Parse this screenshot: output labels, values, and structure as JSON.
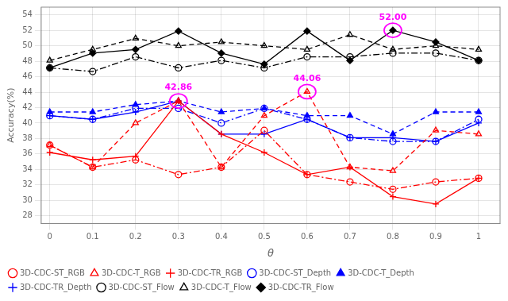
{
  "chart_data": {
    "type": "line",
    "xlabel": "θ",
    "ylabel": "Accuracy(%)",
    "x": [
      0,
      0.1,
      0.2,
      0.3,
      0.4,
      0.5,
      0.6,
      0.7,
      0.8,
      0.9,
      1
    ],
    "series": [
      {
        "name": "3D-CDC-ST_RGB",
        "color": "#FF0000",
        "line_style": "dashdot",
        "marker": "circle_open",
        "values": [
          37.14,
          34.29,
          35.24,
          33.33,
          34.29,
          39.05,
          33.33,
          32.38,
          31.43,
          32.38,
          32.86
        ]
      },
      {
        "name": "3D-CDC-T_RGB",
        "color": "#FF0000",
        "line_style": "dashed",
        "marker": "triangle_open",
        "values": [
          37.14,
          34.29,
          40.0,
          42.86,
          34.29,
          40.95,
          44.06,
          34.29,
          33.81,
          39.05,
          38.57
        ]
      },
      {
        "name": "3D-CDC-TR_RGB",
        "color": "#FF0000",
        "line_style": "solid",
        "marker": "plus",
        "values": [
          36.19,
          35.24,
          35.71,
          42.86,
          38.57,
          36.19,
          33.33,
          34.29,
          30.48,
          29.52,
          32.86
        ]
      },
      {
        "name": "3D-CDC-ST_Depth",
        "color": "#0000FF",
        "line_style": "dashdot",
        "marker": "circle_open",
        "values": [
          40.95,
          40.48,
          41.9,
          41.9,
          40.0,
          41.9,
          40.48,
          38.1,
          37.62,
          37.62,
          40.48
        ]
      },
      {
        "name": "3D-CDC-T_Depth",
        "color": "#0000FF",
        "line_style": "dashed",
        "marker": "triangle",
        "values": [
          41.43,
          41.43,
          42.38,
          42.86,
          41.43,
          41.9,
          40.95,
          40.95,
          38.57,
          41.43,
          41.43
        ]
      },
      {
        "name": "3D-CDC-TR_Depth",
        "color": "#0000FF",
        "line_style": "solid",
        "marker": "plus",
        "values": [
          40.95,
          40.48,
          41.43,
          42.86,
          38.57,
          38.57,
          40.48,
          38.1,
          38.1,
          37.62,
          40.0
        ]
      },
      {
        "name": "3D-CDC-ST_Flow",
        "color": "#000000",
        "line_style": "dashdot",
        "marker": "circle_open",
        "values": [
          47.14,
          46.67,
          48.57,
          47.14,
          48.1,
          47.14,
          48.57,
          48.57,
          49.05,
          49.05,
          48.1
        ]
      },
      {
        "name": "3D-CDC-T_Flow",
        "color": "#000000",
        "line_style": "dashed",
        "marker": "triangle_open",
        "values": [
          48.1,
          49.52,
          50.95,
          50.0,
          50.48,
          50.0,
          49.52,
          51.43,
          49.52,
          50.0,
          49.52
        ]
      },
      {
        "name": "3D-CDC-TR_Flow",
        "color": "#000000",
        "line_style": "solid",
        "marker": "diamond",
        "values": [
          47.14,
          49.05,
          49.52,
          51.9,
          49.05,
          47.62,
          51.9,
          48.1,
          52.0,
          50.48,
          48.1
        ]
      }
    ],
    "xlim": [
      -0.02,
      1.05
    ],
    "xticks": [
      0,
      0.1,
      0.2,
      0.3,
      0.4,
      0.5,
      0.6,
      0.7,
      0.8,
      0.9,
      1
    ],
    "ylim": [
      27,
      55
    ],
    "yticks": [
      28,
      30,
      32,
      34,
      36,
      38,
      40,
      42,
      44,
      46,
      48,
      50,
      52,
      54
    ],
    "grid": true,
    "legend": "lower left",
    "annotations": [
      {
        "x": 0.8,
        "y": 52.0,
        "text": "52.00",
        "color": "#FF00FF"
      },
      {
        "x": 0.3,
        "y": 42.86,
        "text": "42.86",
        "color": "#FF00FF"
      },
      {
        "x": 0.6,
        "y": 44.06,
        "text": "44.06",
        "color": "#FF00FF"
      }
    ]
  }
}
